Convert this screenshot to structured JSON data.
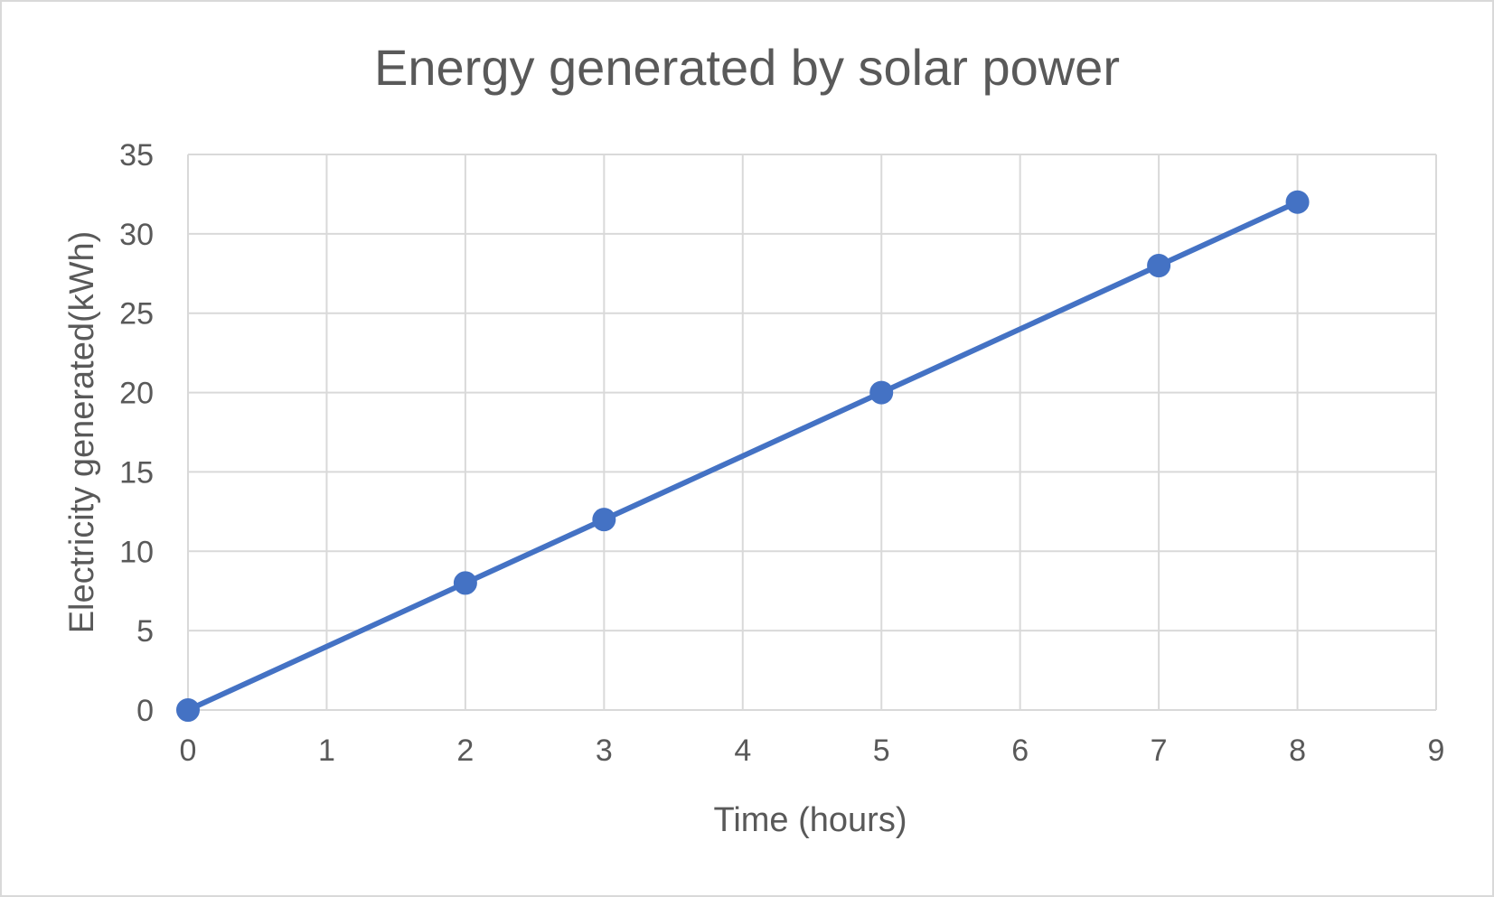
{
  "chart_data": {
    "type": "scatter",
    "title": "Energy generated by solar power",
    "xlabel": "Time (hours)",
    "ylabel": "Electricity generated(kWh)",
    "xlim": [
      0,
      9
    ],
    "ylim": [
      0,
      35
    ],
    "x_ticks": [
      0,
      1,
      2,
      3,
      4,
      5,
      6,
      7,
      8,
      9
    ],
    "y_ticks": [
      0,
      5,
      10,
      15,
      20,
      25,
      30,
      35
    ],
    "grid": true,
    "legend": "none",
    "series": [
      {
        "x": [
          0,
          2,
          3,
          5,
          7,
          8
        ],
        "y": [
          0,
          8,
          12,
          20,
          28,
          32
        ],
        "color": "#4472c4",
        "line": true,
        "markers": true
      }
    ],
    "colors": {
      "grid": "#d9d9d9",
      "text": "#595959",
      "series": "#4472c4"
    }
  }
}
